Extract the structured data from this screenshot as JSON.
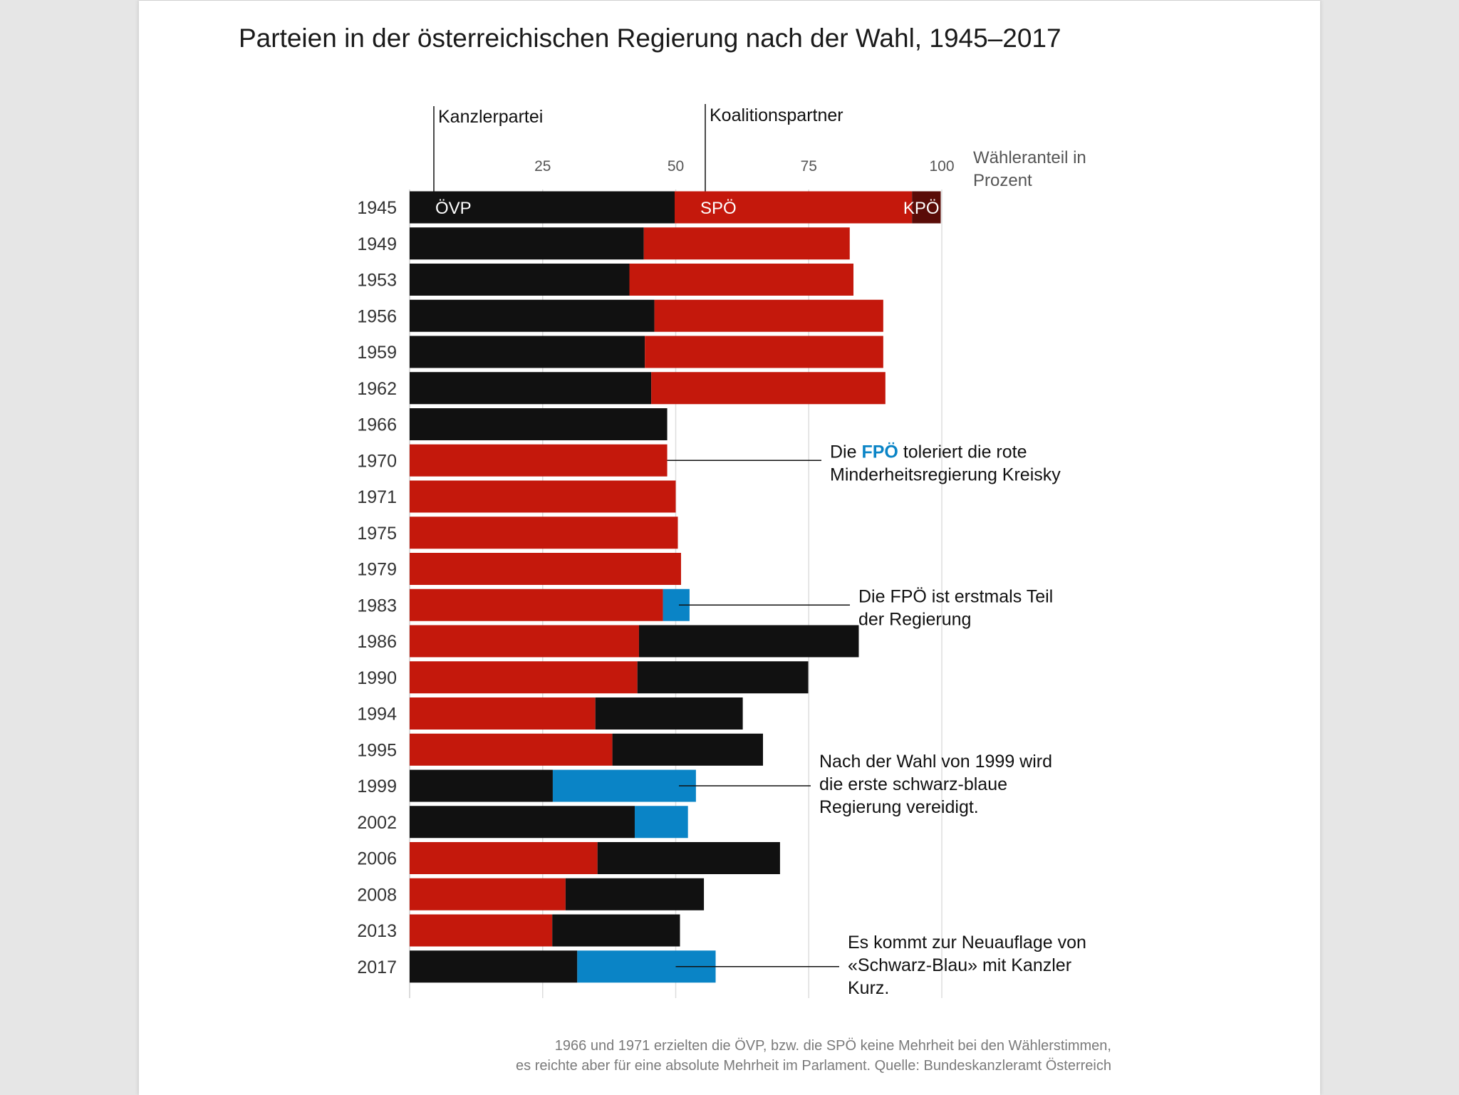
{
  "title": "Parteien in der österreichischen Regierung nach der Wahl, 1945–2017",
  "headers": {
    "chancellor": "Kanzlerpartei",
    "coalition": "Koalitionspartner"
  },
  "colors": {
    "ÖVP": "#111111",
    "SPÖ": "#c4180c",
    "FPÖ": "#0a84c6",
    "KPÖ": "#5a0c08",
    "grid": "#dddddd"
  },
  "chart_data": {
    "type": "bar",
    "orientation": "horizontal-stacked",
    "title": "Parteien in der österreichischen Regierung nach der Wahl, 1945–2017",
    "xlabel_lines": [
      "Wähleranteil in",
      "Prozent"
    ],
    "xlim": [
      0,
      100
    ],
    "xticks": [
      25,
      50,
      75,
      100
    ],
    "grid": true,
    "rows": [
      {
        "year": "1945",
        "segments": [
          {
            "party": "ÖVP",
            "value": 49.8
          },
          {
            "party": "SPÖ",
            "value": 44.6
          },
          {
            "party": "KPÖ",
            "value": 5.4
          }
        ]
      },
      {
        "year": "1949",
        "segments": [
          {
            "party": "ÖVP",
            "value": 44.0
          },
          {
            "party": "SPÖ",
            "value": 38.7
          }
        ]
      },
      {
        "year": "1953",
        "segments": [
          {
            "party": "ÖVP",
            "value": 41.3
          },
          {
            "party": "SPÖ",
            "value": 42.1
          }
        ]
      },
      {
        "year": "1956",
        "segments": [
          {
            "party": "ÖVP",
            "value": 46.0
          },
          {
            "party": "SPÖ",
            "value": 43.0
          }
        ]
      },
      {
        "year": "1959",
        "segments": [
          {
            "party": "ÖVP",
            "value": 44.2
          },
          {
            "party": "SPÖ",
            "value": 44.8
          }
        ]
      },
      {
        "year": "1962",
        "segments": [
          {
            "party": "ÖVP",
            "value": 45.4
          },
          {
            "party": "SPÖ",
            "value": 44.0
          }
        ]
      },
      {
        "year": "1966",
        "segments": [
          {
            "party": "ÖVP",
            "value": 48.4
          }
        ]
      },
      {
        "year": "1970",
        "segments": [
          {
            "party": "SPÖ",
            "value": 48.4
          }
        ]
      },
      {
        "year": "1971",
        "segments": [
          {
            "party": "SPÖ",
            "value": 50.0
          }
        ]
      },
      {
        "year": "1975",
        "segments": [
          {
            "party": "SPÖ",
            "value": 50.4
          }
        ]
      },
      {
        "year": "1979",
        "segments": [
          {
            "party": "SPÖ",
            "value": 51.0
          }
        ]
      },
      {
        "year": "1983",
        "segments": [
          {
            "party": "SPÖ",
            "value": 47.6
          },
          {
            "party": "FPÖ",
            "value": 5.0
          }
        ]
      },
      {
        "year": "1986",
        "segments": [
          {
            "party": "SPÖ",
            "value": 43.1
          },
          {
            "party": "ÖVP",
            "value": 41.3
          }
        ]
      },
      {
        "year": "1990",
        "segments": [
          {
            "party": "SPÖ",
            "value": 42.8
          },
          {
            "party": "ÖVP",
            "value": 32.1
          }
        ]
      },
      {
        "year": "1994",
        "segments": [
          {
            "party": "SPÖ",
            "value": 34.9
          },
          {
            "party": "ÖVP",
            "value": 27.7
          }
        ]
      },
      {
        "year": "1995",
        "segments": [
          {
            "party": "SPÖ",
            "value": 38.1
          },
          {
            "party": "ÖVP",
            "value": 28.3
          }
        ]
      },
      {
        "year": "1999",
        "segments": [
          {
            "party": "ÖVP",
            "value": 26.9
          },
          {
            "party": "FPÖ",
            "value": 26.9
          }
        ]
      },
      {
        "year": "2002",
        "segments": [
          {
            "party": "ÖVP",
            "value": 42.3
          },
          {
            "party": "FPÖ",
            "value": 10.0
          }
        ]
      },
      {
        "year": "2006",
        "segments": [
          {
            "party": "SPÖ",
            "value": 35.3
          },
          {
            "party": "ÖVP",
            "value": 34.3
          }
        ]
      },
      {
        "year": "2008",
        "segments": [
          {
            "party": "SPÖ",
            "value": 29.3
          },
          {
            "party": "ÖVP",
            "value": 26.0
          }
        ]
      },
      {
        "year": "2013",
        "segments": [
          {
            "party": "SPÖ",
            "value": 26.8
          },
          {
            "party": "ÖVP",
            "value": 24.0
          }
        ]
      },
      {
        "year": "2017",
        "segments": [
          {
            "party": "ÖVP",
            "value": 31.5
          },
          {
            "party": "FPÖ",
            "value": 26.0
          }
        ]
      }
    ],
    "bar_labels_1945": [
      "ÖVP",
      "SPÖ",
      "KPÖ"
    ],
    "annotations": [
      {
        "year": "1970",
        "lines": [
          [
            "Die ",
            "FPÖ",
            " toleriert die rote"
          ],
          [
            "Minderheitsregierung Kreisky"
          ]
        ]
      },
      {
        "year": "1983",
        "lines": [
          [
            "Die FPÖ ist erstmals Teil"
          ],
          [
            "der Regierung"
          ]
        ]
      },
      {
        "year": "1999",
        "lines": [
          [
            "Nach der Wahl von 1999 wird"
          ],
          [
            "die erste schwarz-blaue"
          ],
          [
            "Regierung vereidigt."
          ]
        ]
      },
      {
        "year": "2017",
        "lines": [
          [
            "Es kommt zur Neuauflage von"
          ],
          [
            "«Schwarz-Blau» mit Kanzler"
          ],
          [
            "Kurz."
          ]
        ]
      }
    ]
  },
  "footnote": [
    "1966 und 1971 erzielten die ÖVP, bzw. die SPÖ keine Mehrheit bei den Wählerstimmen,",
    "es reichte aber für eine absolute Mehrheit im Parlament. Quelle: Bundeskanzleramt Österreich"
  ]
}
